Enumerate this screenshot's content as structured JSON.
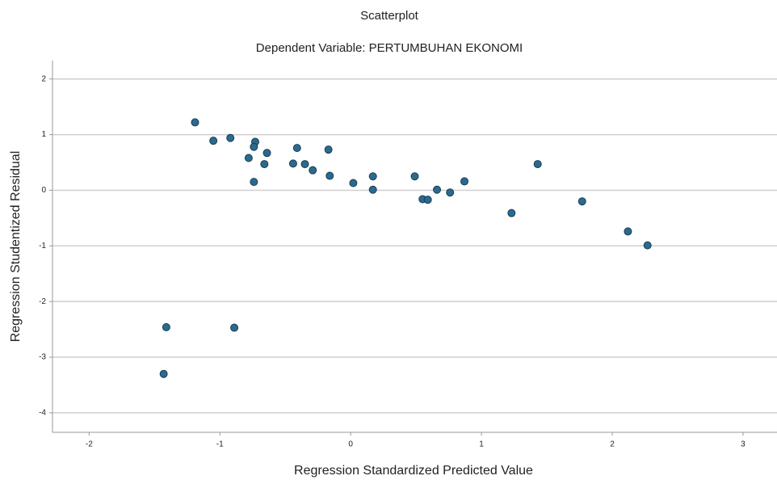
{
  "chart_data": {
    "type": "scatter",
    "title": "Scatterplot",
    "subtitle": "Dependent Variable: PERTUMBUHAN EKONOMI",
    "x_label": "Regression Standardized Predicted Value",
    "y_label": "Regression Studentized Residual",
    "x": [
      -1.19,
      -1.05,
      -0.92,
      -0.73,
      -0.74,
      -0.64,
      -0.78,
      -0.66,
      -0.74,
      -0.41,
      -0.44,
      -0.35,
      -0.29,
      -0.17,
      -0.16,
      0.02,
      0.17,
      0.17,
      0.49,
      0.55,
      0.59,
      0.66,
      0.76,
      0.87,
      1.23,
      1.43,
      1.77,
      2.12,
      2.27,
      -1.41,
      -0.89,
      -1.43
    ],
    "values": [
      1.22,
      0.89,
      0.94,
      0.87,
      0.78,
      0.67,
      0.58,
      0.47,
      0.15,
      0.76,
      0.48,
      0.47,
      0.36,
      0.73,
      0.26,
      0.13,
      0.25,
      0.01,
      0.25,
      -0.16,
      -0.17,
      0.01,
      -0.04,
      0.16,
      -0.41,
      0.47,
      -0.2,
      -0.74,
      -0.99,
      -2.46,
      -2.47,
      -3.3
    ],
    "color": "#2b6a8e",
    "xlim": [
      -2.28,
      3.26
    ],
    "xticks": [
      -2,
      -1,
      0,
      1,
      2,
      3
    ],
    "ylim": [
      -4.35,
      2.33
    ],
    "yticks": [
      2,
      1,
      0,
      -1,
      -2,
      -3,
      -4
    ],
    "grid": true
  }
}
